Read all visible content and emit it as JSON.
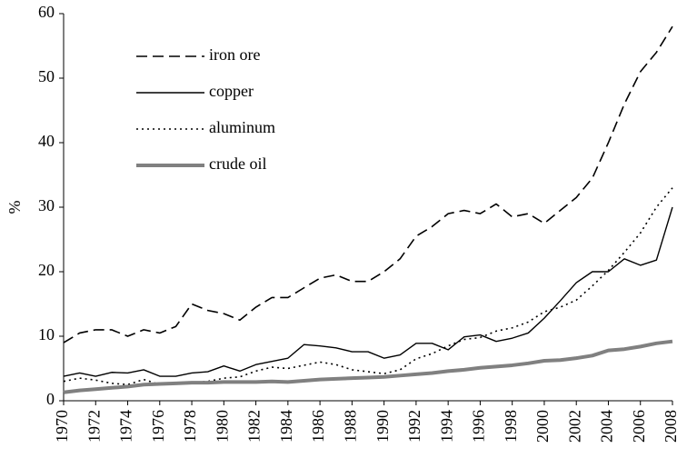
{
  "chart_data": {
    "type": "line",
    "y_label": "%",
    "x": [
      1970,
      1971,
      1972,
      1973,
      1974,
      1975,
      1976,
      1977,
      1978,
      1979,
      1980,
      1981,
      1982,
      1983,
      1984,
      1985,
      1986,
      1987,
      1988,
      1989,
      1990,
      1991,
      1992,
      1993,
      1994,
      1995,
      1996,
      1997,
      1998,
      1999,
      2000,
      2001,
      2002,
      2003,
      2004,
      2005,
      2006,
      2007,
      2008
    ],
    "xlim": [
      1970,
      2008
    ],
    "xticks": [
      1970,
      1972,
      1974,
      1976,
      1978,
      1980,
      1982,
      1984,
      1986,
      1988,
      1990,
      1992,
      1994,
      1996,
      1998,
      2000,
      2002,
      2004,
      2006,
      2008
    ],
    "ylim": [
      0,
      60
    ],
    "yticks": [
      0,
      10,
      20,
      30,
      40,
      50,
      60
    ],
    "legend": "upper left",
    "series": [
      {
        "name": "iron ore",
        "color": "#000000",
        "style": "dashed",
        "values": [
          9,
          10.5,
          11,
          11,
          10,
          11,
          10.5,
          11.5,
          15,
          14,
          13.5,
          12.5,
          14.5,
          16,
          16,
          17.5,
          19,
          19.5,
          18.5,
          18.5,
          20,
          22,
          25.5,
          27,
          29,
          29.5,
          29,
          30.5,
          28.5,
          29,
          27.5,
          29.5,
          31.5,
          34.5,
          40,
          46,
          51,
          54,
          58
        ]
      },
      {
        "name": "copper",
        "color": "#000000",
        "style": "solid",
        "values": [
          3.8,
          4.3,
          3.8,
          4.4,
          4.3,
          4.8,
          3.8,
          3.8,
          4.3,
          4.5,
          5.4,
          4.6,
          5.6,
          6.1,
          6.6,
          8.7,
          8.5,
          8.2,
          7.6,
          7.6,
          6.6,
          7.1,
          8.9,
          8.9,
          7.9,
          9.9,
          10.2,
          9.2,
          9.7,
          10.5,
          12.8,
          15.5,
          18.3,
          20,
          20,
          22,
          21,
          21.8,
          30
        ]
      },
      {
        "name": "aluminum",
        "color": "#000000",
        "style": "dotted",
        "values": [
          3,
          3.5,
          3.2,
          2.7,
          2.5,
          3.3,
          2.5,
          2.8,
          2.8,
          3,
          3.5,
          3.7,
          4.6,
          5.2,
          5,
          5.5,
          6,
          5.6,
          4.8,
          4.5,
          4.2,
          4.8,
          6.5,
          7.3,
          8.5,
          9.5,
          9.8,
          10.8,
          11.3,
          12.2,
          13.8,
          14.5,
          15.6,
          17.8,
          20.2,
          23,
          26,
          30,
          33
        ]
      },
      {
        "name": "crude oil",
        "color": "#808080",
        "style": "thick",
        "values": [
          1.3,
          1.6,
          1.8,
          2,
          2.2,
          2.5,
          2.6,
          2.7,
          2.8,
          2.8,
          2.9,
          2.9,
          2.9,
          3,
          2.9,
          3.1,
          3.3,
          3.4,
          3.5,
          3.6,
          3.7,
          3.9,
          4.1,
          4.3,
          4.6,
          4.8,
          5.1,
          5.3,
          5.5,
          5.8,
          6.2,
          6.3,
          6.6,
          7,
          7.8,
          8,
          8.4,
          8.9,
          9.2
        ]
      }
    ]
  }
}
